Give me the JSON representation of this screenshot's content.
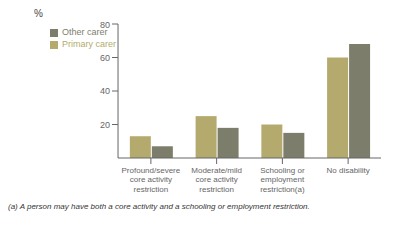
{
  "chart_data": {
    "type": "bar",
    "ylabel": "%",
    "categories": [
      "Profound/severe\ncore activity\nrestriction",
      "Moderate/mild\ncore activity\nrestriction",
      "Schooling or\nemployment\nrestriction(a)",
      "No disability"
    ],
    "series": [
      {
        "name": "Primary carer",
        "color": "#b5aa6e",
        "values": [
          13,
          25,
          20,
          60
        ]
      },
      {
        "name": "Other carer",
        "color": "#7d7d6b",
        "values": [
          7,
          18,
          15,
          68
        ]
      }
    ],
    "ylim": [
      0,
      80
    ],
    "yticks": [
      20,
      40,
      60,
      80
    ],
    "grid": false,
    "legend": "upper left",
    "annotations": [
      "(a) A person may have both a core activity and a schooling or employment restriction."
    ]
  }
}
